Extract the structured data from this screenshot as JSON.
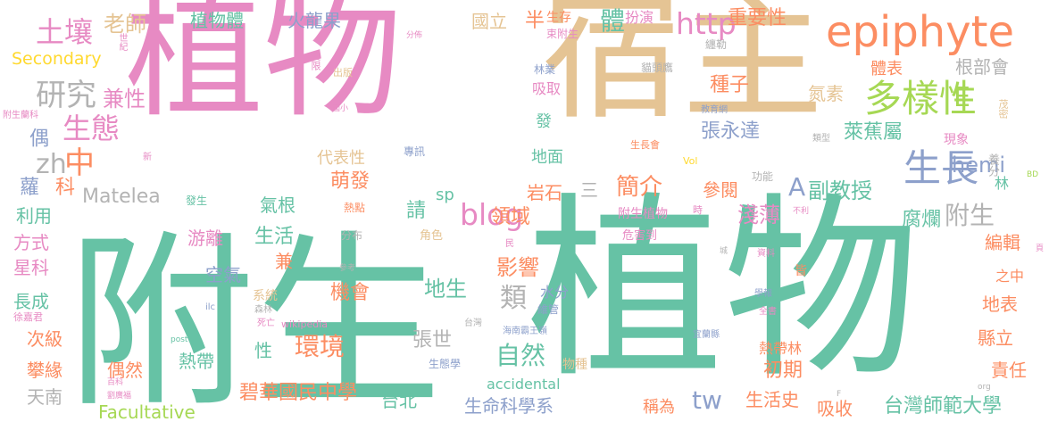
{
  "words": [
    {
      "text": "附生植物",
      "color": "#66c2a5",
      "weight": 1.0
    },
    {
      "text": "植物宿主",
      "color": "#e78ac3",
      "weight": 0.97
    },
    {
      "text": "宿主",
      "color": "#e5c494",
      "weight": 0.95
    },
    {
      "text": "植物",
      "color": "#66c2a5",
      "weight": 0.9
    },
    {
      "text": "epiphyte",
      "color": "#fc8d62",
      "weight": 0.4
    },
    {
      "text": "多樣性",
      "color": "#a6d854",
      "weight": 0.36
    },
    {
      "text": "生長",
      "color": "#8da0cb",
      "weight": 0.36
    },
    {
      "text": "blog",
      "color": "#e78ac3",
      "weight": 0.3
    },
    {
      "text": "http",
      "color": "#e78ac3",
      "weight": 0.3
    },
    {
      "text": "E",
      "color": "#a6d854",
      "weight": 0.25
    },
    {
      "text": "A",
      "color": "#8da0cb",
      "weight": 0.22
    },
    {
      "text": "hemi",
      "color": "#8da0cb",
      "weight": 0.2
    },
    {
      "text": "研究",
      "color": "#b3b3b3",
      "weight": 0.27
    },
    {
      "text": "土壤",
      "color": "#e78ac3",
      "weight": 0.26
    },
    {
      "text": "生態",
      "color": "#e78ac3",
      "weight": 0.26
    },
    {
      "text": "老師",
      "color": "#e5c494",
      "weight": 0.2
    },
    {
      "text": "兼性",
      "color": "#e78ac3",
      "weight": 0.2
    },
    {
      "text": "中",
      "color": "#fc8d62",
      "weight": 0.28
    },
    {
      "text": "zh",
      "color": "#b3b3b3",
      "weight": 0.24
    },
    {
      "text": "Secondary",
      "color": "#ffd92f",
      "weight": 0.15
    },
    {
      "text": "植物體",
      "color": "#66c2a5",
      "weight": 0.16
    },
    {
      "text": "火龍果",
      "color": "#8da0cb",
      "weight": 0.16
    },
    {
      "text": "國立",
      "color": "#e5c494",
      "weight": 0.15
    },
    {
      "text": "半",
      "color": "#fc8d62",
      "weight": 0.15
    },
    {
      "text": "生存",
      "color": "#fc8d62",
      "weight": 0.1
    },
    {
      "text": "體",
      "color": "#66c2a5",
      "weight": 0.22
    },
    {
      "text": "扮演",
      "color": "#e78ac3",
      "weight": 0.12
    },
    {
      "text": "重要性",
      "color": "#fc8d62",
      "weight": 0.16
    },
    {
      "text": "世紀",
      "color": "#e78ac3",
      "weight": 0.08
    },
    {
      "text": "分佈",
      "color": "#e78ac3",
      "weight": 0.07
    },
    {
      "text": "束附生",
      "color": "#e78ac3",
      "weight": 0.08
    },
    {
      "text": "纏勒",
      "color": "#b3b3b3",
      "weight": 0.08
    },
    {
      "text": "貓頭鷹",
      "color": "#b3b3b3",
      "weight": 0.08
    },
    {
      "text": "林業",
      "color": "#8da0cb",
      "weight": 0.08
    },
    {
      "text": "受限",
      "color": "#e78ac3",
      "weight": 0.08
    },
    {
      "text": "出版",
      "color": "#e5c494",
      "weight": 0.08
    },
    {
      "text": "吸取",
      "color": "#e78ac3",
      "weight": 0.11
    },
    {
      "text": "國小",
      "color": "#e78ac3",
      "weight": 0.06
    },
    {
      "text": "附生蘭科",
      "color": "#e78ac3",
      "weight": 0.06
    },
    {
      "text": "偶",
      "color": "#8da0cb",
      "weight": 0.16
    },
    {
      "text": "新",
      "color": "#e78ac3",
      "weight": 0.08
    },
    {
      "text": "專訊",
      "color": "#8da0cb",
      "weight": 0.08
    },
    {
      "text": "代表性",
      "color": "#e5c494",
      "weight": 0.15
    },
    {
      "text": "地面",
      "color": "#66c2a5",
      "weight": 0.15
    },
    {
      "text": "發",
      "color": "#66c2a5",
      "weight": 0.15
    },
    {
      "text": "種子",
      "color": "#fc8d62",
      "weight": 0.16
    },
    {
      "text": "體表",
      "color": "#fc8d62",
      "weight": 0.15
    },
    {
      "text": "根部會",
      "color": "#b3b3b3",
      "weight": 0.15
    },
    {
      "text": "氮素",
      "color": "#e5c494",
      "weight": 0.15
    },
    {
      "text": "茂密",
      "color": "#e5c494",
      "weight": 0.08
    },
    {
      "text": "教育網",
      "color": "#8da0cb",
      "weight": 0.06
    },
    {
      "text": "類型",
      "color": "#b3b3b3",
      "weight": 0.06
    },
    {
      "text": "張永達",
      "color": "#8da0cb",
      "weight": 0.17
    },
    {
      "text": "現象",
      "color": "#e78ac3",
      "weight": 0.1
    },
    {
      "text": "萊蕉屬",
      "color": "#66c2a5",
      "weight": 0.17
    },
    {
      "text": "生長會",
      "color": "#fc8d62",
      "weight": 0.07
    },
    {
      "text": "Vol",
      "color": "#ffd92f",
      "weight": 0.07
    },
    {
      "text": "養分",
      "color": "#b3b3b3",
      "weight": 0.1
    },
    {
      "text": "BD",
      "color": "#a6d854",
      "weight": 0.06
    },
    {
      "text": "蘿",
      "color": "#8da0cb",
      "weight": 0.16
    },
    {
      "text": "科",
      "color": "#fc8d62",
      "weight": 0.16
    },
    {
      "text": "Matelea",
      "color": "#b3b3b3",
      "weight": 0.15
    },
    {
      "text": "萌發",
      "color": "#fc8d62",
      "weight": 0.16
    },
    {
      "text": "岩石",
      "color": "#fc8d62",
      "weight": 0.15
    },
    {
      "text": "三",
      "color": "#b3b3b3",
      "weight": 0.15
    },
    {
      "text": "sp",
      "color": "#66c2a5",
      "weight": 0.14
    },
    {
      "text": "簡介",
      "color": "#fc8d62",
      "weight": 0.2
    },
    {
      "text": "參閱",
      "color": "#fc8d62",
      "weight": 0.16
    },
    {
      "text": "功能",
      "color": "#b3b3b3",
      "weight": 0.08
    },
    {
      "text": "副教授",
      "color": "#66c2a5",
      "weight": 0.2
    },
    {
      "text": "林",
      "color": "#66c2a5",
      "weight": 0.1
    },
    {
      "text": "利用",
      "color": "#66c2a5",
      "weight": 0.15
    },
    {
      "text": "發生",
      "color": "#66c2a5",
      "weight": 0.08
    },
    {
      "text": "熱點",
      "color": "#fc8d62",
      "weight": 0.08
    },
    {
      "text": "氣根",
      "color": "#66c2a5",
      "weight": 0.16
    },
    {
      "text": "請",
      "color": "#66c2a5",
      "weight": 0.16
    },
    {
      "text": "領域",
      "color": "#fc8d62",
      "weight": 0.17
    },
    {
      "text": "附生植物",
      "color": "#e78ac3",
      "weight": 0.1
    },
    {
      "text": "時",
      "color": "#e78ac3",
      "weight": 0.08
    },
    {
      "text": "淺薄",
      "color": "#e78ac3",
      "weight": 0.2
    },
    {
      "text": "不利",
      "color": "#e78ac3",
      "weight": 0.06
    },
    {
      "text": "附生",
      "color": "#b3b3b3",
      "weight": 0.24
    },
    {
      "text": "腐爛",
      "color": "#66c2a5",
      "weight": 0.17
    },
    {
      "text": "方式",
      "color": "#e78ac3",
      "weight": 0.15
    },
    {
      "text": "游離",
      "color": "#e78ac3",
      "weight": 0.15
    },
    {
      "text": "生活",
      "color": "#66c2a5",
      "weight": 0.16
    },
    {
      "text": "分布",
      "color": "#b3b3b3",
      "weight": 0.08
    },
    {
      "text": "角色",
      "color": "#e5c494",
      "weight": 0.09
    },
    {
      "text": "民",
      "color": "#e78ac3",
      "weight": 0.06
    },
    {
      "text": "危害到",
      "color": "#e78ac3",
      "weight": 0.08
    },
    {
      "text": "影響",
      "color": "#fc8d62",
      "weight": 0.2
    },
    {
      "text": "城",
      "color": "#b3b3b3",
      "weight": 0.06
    },
    {
      "text": "資料",
      "color": "#e78ac3",
      "weight": 0.07
    },
    {
      "text": "編輯",
      "color": "#fc8d62",
      "weight": 0.16
    },
    {
      "text": "頁",
      "color": "#e78ac3",
      "weight": 0.06
    },
    {
      "text": "星科",
      "color": "#e78ac3",
      "weight": 0.15
    },
    {
      "text": "兼",
      "color": "#fc8d62",
      "weight": 0.16
    },
    {
      "text": "參考",
      "color": "#b3b3b3",
      "weight": 0.06
    },
    {
      "text": "皆",
      "color": "#fc8d62",
      "weight": 0.1
    },
    {
      "text": "之中",
      "color": "#fc8d62",
      "weight": 0.12
    },
    {
      "text": "空氣",
      "color": "#8da0cb",
      "weight": 0.16
    },
    {
      "text": "地生",
      "color": "#66c2a5",
      "weight": 0.18
    },
    {
      "text": "類",
      "color": "#b3b3b3",
      "weight": 0.24
    },
    {
      "text": "水分",
      "color": "#8da0cb",
      "weight": 0.14
    },
    {
      "text": "學報",
      "color": "#8da0cb",
      "weight": 0.08
    },
    {
      "text": "長成",
      "color": "#66c2a5",
      "weight": 0.15
    },
    {
      "text": "系統",
      "color": "#e5c494",
      "weight": 0.1
    },
    {
      "text": "機會",
      "color": "#fc8d62",
      "weight": 0.16
    },
    {
      "text": "維管",
      "color": "#8da0cb",
      "weight": 0.08
    },
    {
      "text": "全書",
      "color": "#e78ac3",
      "weight": 0.07
    },
    {
      "text": "地表",
      "color": "#fc8d62",
      "weight": 0.16
    },
    {
      "text": "徐嘉君",
      "color": "#e78ac3",
      "weight": 0.07
    },
    {
      "text": "ilc",
      "color": "#8da0cb",
      "weight": 0.06
    },
    {
      "text": "森林",
      "color": "#b3b3b3",
      "weight": 0.06
    },
    {
      "text": "台灣",
      "color": "#b3b3b3",
      "weight": 0.06
    },
    {
      "text": "海南霸王嶺",
      "color": "#8da0cb",
      "weight": 0.06
    },
    {
      "text": "次級",
      "color": "#fc8d62",
      "weight": 0.15
    },
    {
      "text": "死亡",
      "color": "#e78ac3",
      "weight": 0.06
    },
    {
      "text": "wikipedia",
      "color": "#e78ac3",
      "weight": 0.07
    },
    {
      "text": "環境",
      "color": "#fc8d62",
      "weight": 0.2
    },
    {
      "text": "宜蘭縣",
      "color": "#8da0cb",
      "weight": 0.06
    },
    {
      "text": "縣立",
      "color": "#fc8d62",
      "weight": 0.15
    },
    {
      "text": "post",
      "color": "#66c2a5",
      "weight": 0.06
    },
    {
      "text": "張世",
      "color": "#b3b3b3",
      "weight": 0.16
    },
    {
      "text": "熱帶林",
      "color": "#fc8d62",
      "weight": 0.12
    },
    {
      "text": "攀緣",
      "color": "#fc8d62",
      "weight": 0.15
    },
    {
      "text": "性",
      "color": "#66c2a5",
      "weight": 0.15
    },
    {
      "text": "自然",
      "color": "#66c2a5",
      "weight": 0.2
    },
    {
      "text": "生態學",
      "color": "#8da0cb",
      "weight": 0.07
    },
    {
      "text": "物種",
      "color": "#e5c494",
      "weight": 0.08
    },
    {
      "text": "初期",
      "color": "#fc8d62",
      "weight": 0.15
    },
    {
      "text": "偶然",
      "color": "#fc8d62",
      "weight": 0.15
    },
    {
      "text": "熱帶",
      "color": "#66c2a5",
      "weight": 0.15
    },
    {
      "text": "責任",
      "color": "#fc8d62",
      "weight": 0.15
    },
    {
      "text": "百科",
      "color": "#e78ac3",
      "weight": 0.06
    },
    {
      "text": "accidental",
      "color": "#66c2a5",
      "weight": 0.14
    },
    {
      "text": "天南",
      "color": "#b3b3b3",
      "weight": 0.15
    },
    {
      "text": "劉廣福",
      "color": "#e78ac3",
      "weight": 0.06
    },
    {
      "text": "F",
      "color": "#b3b3b3",
      "weight": 0.06
    },
    {
      "text": "org",
      "color": "#b3b3b3",
      "weight": 0.06
    },
    {
      "text": "碧華國民中學",
      "color": "#fc8d62",
      "weight": 0.16
    },
    {
      "text": "台北",
      "color": "#66c2a5",
      "weight": 0.15
    },
    {
      "text": "tw",
      "color": "#8da0cb",
      "weight": 0.2
    },
    {
      "text": "生命科學系",
      "color": "#8da0cb",
      "weight": 0.15
    },
    {
      "text": "稱為",
      "color": "#fc8d62",
      "weight": 0.14
    },
    {
      "text": "生活史",
      "color": "#fc8d62",
      "weight": 0.15
    },
    {
      "text": "吸收",
      "color": "#fc8d62",
      "weight": 0.15
    },
    {
      "text": "台灣師範大學",
      "color": "#66c2a5",
      "weight": 0.16
    },
    {
      "text": "Facultative",
      "color": "#a6d854",
      "weight": 0.15
    }
  ]
}
